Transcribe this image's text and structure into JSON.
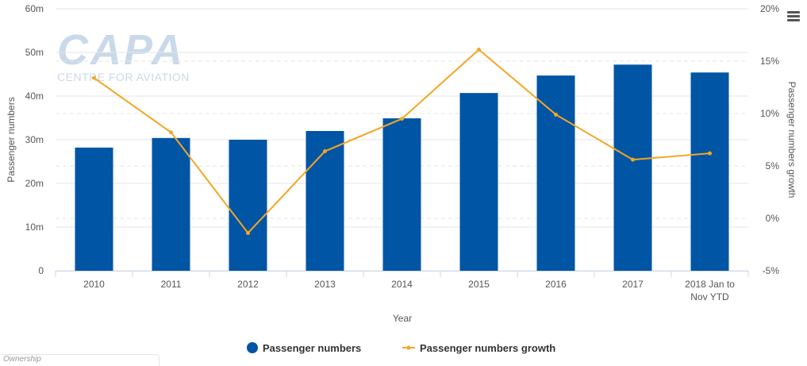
{
  "watermark": {
    "brand": "CAPA",
    "tagline": "CENTRE FOR AVIATION"
  },
  "menu": {
    "icon": "hamburger-menu-icon"
  },
  "footer": {
    "ownership_text": "Ownership"
  },
  "colors": {
    "bar": "#0055a5",
    "line": "#f5a623",
    "grid": "#e6e6e6",
    "axis": "#ccd6eb"
  },
  "chart_data": {
    "type": "bar",
    "categories": [
      "2010",
      "2011",
      "2012",
      "2013",
      "2014",
      "2015",
      "2016",
      "2017",
      "2018 Jan to Nov YTD"
    ],
    "category_lines": [
      [
        "2010"
      ],
      [
        "2011"
      ],
      [
        "2012"
      ],
      [
        "2013"
      ],
      [
        "2014"
      ],
      [
        "2015"
      ],
      [
        "2016"
      ],
      [
        "2017"
      ],
      [
        "2018 Jan to",
        "Nov YTD"
      ]
    ],
    "series": [
      {
        "name": "Passenger numbers",
        "type": "bar",
        "axis": "left",
        "values": [
          28.2,
          30.4,
          30.0,
          32.0,
          34.9,
          40.7,
          44.7,
          47.2,
          45.4
        ]
      },
      {
        "name": "Passenger numbers growth",
        "type": "line",
        "axis": "right",
        "values": [
          13.4,
          8.2,
          -1.4,
          6.4,
          9.5,
          16.1,
          9.9,
          5.6,
          6.2
        ]
      }
    ],
    "xlabel": "Year",
    "ylabel": "Passenger numbers",
    "y2label": "Passenger numbers growth",
    "ylim": [
      0,
      60
    ],
    "y_ticks": [
      0,
      10,
      20,
      30,
      40,
      50,
      60
    ],
    "y_tick_labels": [
      "0",
      "10m",
      "20m",
      "30m",
      "40m",
      "50m",
      "60m"
    ],
    "y2lim": [
      -5,
      20
    ],
    "y2_ticks": [
      -5,
      0,
      5,
      10,
      15,
      20
    ],
    "y2_tick_labels": [
      "-5%",
      "0%",
      "5%",
      "10%",
      "15%",
      "20%"
    ],
    "grid": true,
    "legend_position": "bottom-center"
  }
}
